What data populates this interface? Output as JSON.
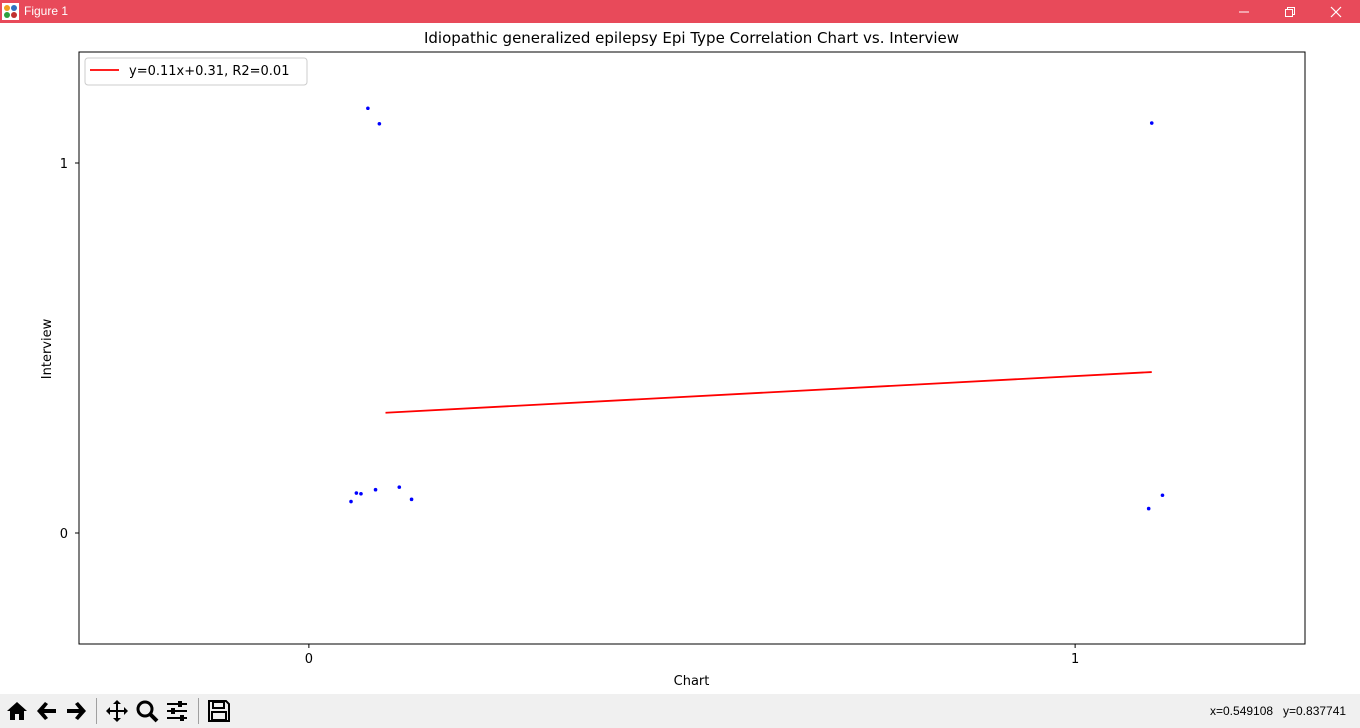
{
  "window": {
    "title": "Figure 1",
    "controls": {
      "minimize": "minimize-icon",
      "maximize": "restore-icon",
      "close": "close-icon"
    },
    "titlebar_color": "#e84a5a"
  },
  "toolbar": {
    "buttons": [
      "home-icon",
      "back-arrow-icon",
      "forward-arrow-icon",
      "pan-icon",
      "zoom-icon",
      "configure-subplots-icon",
      "save-icon"
    ],
    "coords": {
      "x": "x=0.549108",
      "y": "y=0.837741"
    }
  },
  "chart_data": {
    "type": "scatter",
    "title": "Idiopathic generalized epilepsy Epi Type Correlation Chart vs. Interview",
    "xlabel": "Chart",
    "ylabel": "Interview",
    "xlim": [
      -0.3,
      1.3
    ],
    "ylim": [
      -0.3,
      1.3
    ],
    "xticks": [
      0,
      1
    ],
    "yticks": [
      0,
      1
    ],
    "grid": false,
    "legend": {
      "location": "upper left",
      "entries": [
        "y=0.11x+0.31, R2=0.01"
      ]
    },
    "colors": {
      "points": "#0000ff",
      "fit_line": "#ff0000"
    },
    "series": [
      {
        "kind": "points",
        "x": [
          0.055,
          0.062,
          0.068,
          0.077,
          0.092,
          0.087,
          0.118,
          0.134,
          1.096,
          1.1,
          1.114
        ],
        "y": [
          0.085,
          0.108,
          0.106,
          1.148,
          1.106,
          0.117,
          0.124,
          0.091,
          0.066,
          1.108,
          0.102
        ]
      },
      {
        "kind": "line",
        "name": "y=0.11x+0.31, R2=0.01",
        "x": [
          0.1,
          1.1
        ],
        "y": [
          0.325,
          0.435
        ]
      }
    ]
  }
}
